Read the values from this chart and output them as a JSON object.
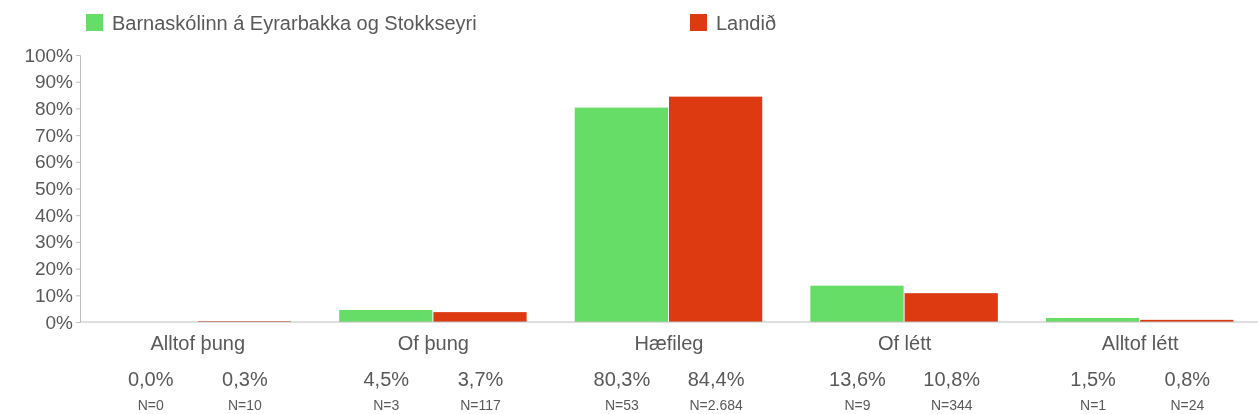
{
  "chart_data": {
    "type": "bar",
    "categories": [
      "Alltof þung",
      "Of þung",
      "Hæfileg",
      "Of létt",
      "Alltof létt"
    ],
    "series": [
      {
        "name": "Barnaskólinn á Eyrarbakka og Stokkseyri",
        "color": "#66dd66",
        "values": [
          0.0,
          4.5,
          80.3,
          13.6,
          1.5
        ],
        "value_labels": [
          "0,0%\nN=0",
          "4,5%\nN=3",
          "80,3%\nN=53",
          "13,6%\nN=9",
          "1,5%\nN=1"
        ]
      },
      {
        "name": "Landið",
        "color": "#dd3a12",
        "values": [
          0.3,
          3.7,
          84.4,
          10.8,
          0.8
        ],
        "value_labels": [
          "0,3%\nN=10",
          "3,7%\nN=117",
          "84,4%\nN=2.684",
          "10,8%\nN=344",
          "0,8%\nN=24"
        ]
      }
    ],
    "ylim": [
      0,
      100
    ],
    "yticks": [
      {
        "value": 0,
        "label": "0%"
      },
      {
        "value": 10,
        "label": "10%"
      },
      {
        "value": 20,
        "label": "20%"
      },
      {
        "value": 30,
        "label": "30%"
      },
      {
        "value": 40,
        "label": "40%"
      },
      {
        "value": 50,
        "label": "50%"
      },
      {
        "value": 60,
        "label": "60%"
      },
      {
        "value": 70,
        "label": "70%"
      },
      {
        "value": 80,
        "label": "80%"
      },
      {
        "value": 90,
        "label": "90%"
      },
      {
        "value": 100,
        "label": "100%"
      }
    ],
    "grid": false,
    "legend": "top left"
  }
}
